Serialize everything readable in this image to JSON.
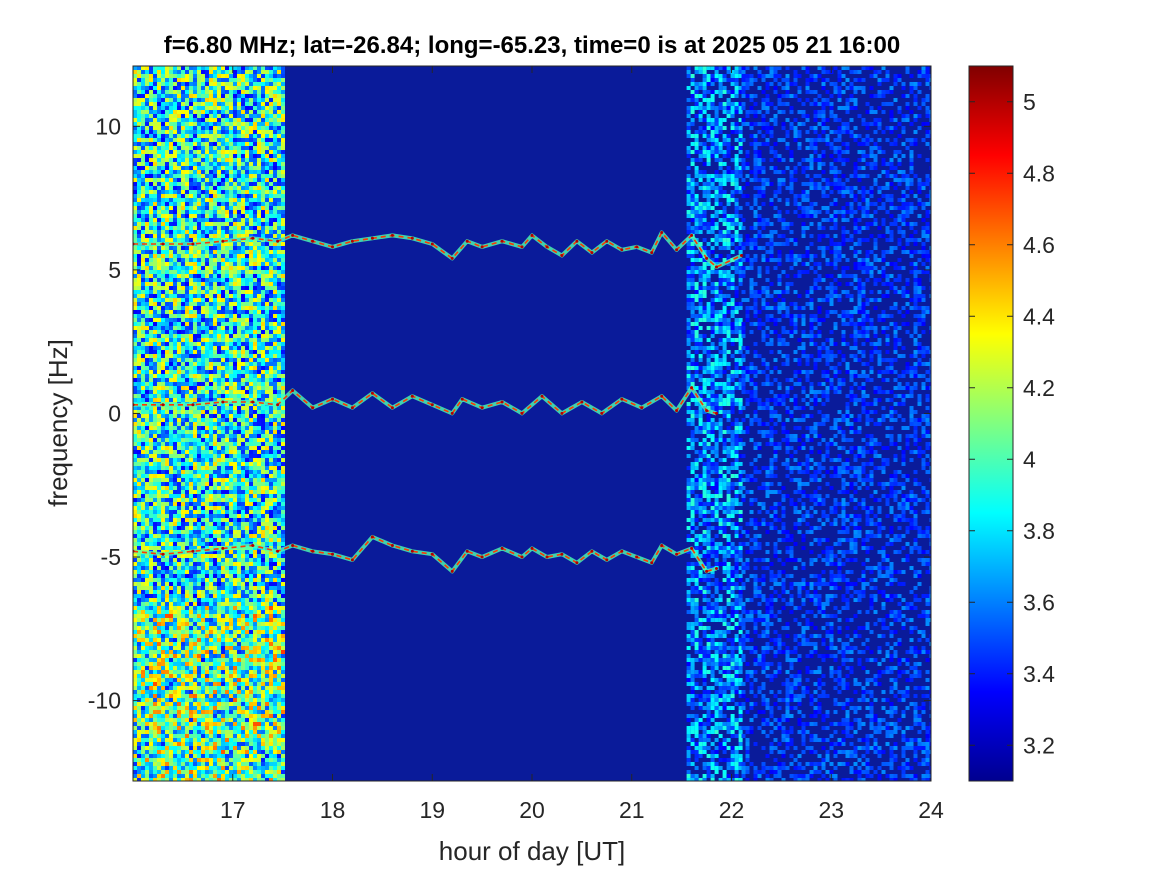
{
  "chart_data": {
    "type": "heatmap",
    "title": "f=6.80 MHz;  lat=-26.84; long=-65.23, time=0 is at 2025 05 21 16:00",
    "xlabel": "hour of day [UT]",
    "ylabel": "frequency [Hz]",
    "xlim": [
      16.0,
      24.0
    ],
    "ylim": [
      -12.8,
      12.1
    ],
    "x_ticks": [
      "17",
      "18",
      "19",
      "20",
      "21",
      "22",
      "23",
      "24"
    ],
    "y_ticks": [
      "10",
      "5",
      "0",
      "-5",
      "-10"
    ],
    "colorbar": {
      "range": [
        3.1,
        5.1
      ],
      "ticks": [
        "5",
        "4.8",
        "4.6",
        "4.4",
        "4.2",
        "4",
        "3.8",
        "3.6",
        "3.4",
        "3.2"
      ],
      "colormap": "jet"
    },
    "background_level": 3.15,
    "noise_regions": [
      {
        "x": [
          16.0,
          17.5
        ],
        "level": "high"
      },
      {
        "x": [
          21.55,
          22.1
        ],
        "level": "medium"
      },
      {
        "x": [
          22.1,
          24.0
        ],
        "level": "low"
      }
    ],
    "traces": [
      {
        "x": [
          16.0,
          16.3,
          16.6,
          16.9,
          17.2,
          17.45,
          17.6,
          17.8,
          18.0,
          18.2,
          18.4,
          18.6,
          18.8,
          19.0,
          19.2,
          19.35,
          19.5,
          19.7,
          19.9,
          20.0,
          20.15,
          20.3,
          20.45,
          20.6,
          20.75,
          20.9,
          21.05,
          21.2,
          21.3,
          21.45,
          21.6,
          21.75,
          21.85,
          22.1
        ],
        "y": [
          5.9,
          5.9,
          5.9,
          6.0,
          6.1,
          6.0,
          6.2,
          6.0,
          5.8,
          6.0,
          6.1,
          6.2,
          6.1,
          5.9,
          5.4,
          6.0,
          5.8,
          6.0,
          5.8,
          6.2,
          5.8,
          5.5,
          6.0,
          5.6,
          6.0,
          5.7,
          5.8,
          5.6,
          6.3,
          5.7,
          6.2,
          5.4,
          5.1,
          5.5
        ]
      },
      {
        "x": [
          16.0,
          16.3,
          16.6,
          16.9,
          17.2,
          17.45,
          17.6,
          17.8,
          18.0,
          18.2,
          18.4,
          18.6,
          18.8,
          19.0,
          19.2,
          19.3,
          19.5,
          19.7,
          19.9,
          20.1,
          20.3,
          20.5,
          20.7,
          20.9,
          21.1,
          21.3,
          21.45,
          21.6,
          21.75,
          21.85
        ],
        "y": [
          0.3,
          0.3,
          0.3,
          0.4,
          0.4,
          0.3,
          0.8,
          0.2,
          0.5,
          0.2,
          0.7,
          0.2,
          0.6,
          0.3,
          0.0,
          0.5,
          0.2,
          0.4,
          0.0,
          0.6,
          0.0,
          0.4,
          0.0,
          0.5,
          0.2,
          0.6,
          0.1,
          0.9,
          0.1,
          0.0
        ]
      },
      {
        "x": [
          16.0,
          16.3,
          16.6,
          16.9,
          17.2,
          17.45,
          17.6,
          17.8,
          18.0,
          18.2,
          18.4,
          18.6,
          18.8,
          19.0,
          19.2,
          19.35,
          19.5,
          19.7,
          19.9,
          20.0,
          20.15,
          20.3,
          20.45,
          20.6,
          20.75,
          20.9,
          21.05,
          21.2,
          21.3,
          21.45,
          21.6,
          21.75,
          21.85
        ],
        "y": [
          -4.8,
          -4.9,
          -4.8,
          -4.7,
          -4.6,
          -4.8,
          -4.6,
          -4.8,
          -4.9,
          -5.1,
          -4.3,
          -4.6,
          -4.8,
          -4.9,
          -5.5,
          -4.8,
          -5.0,
          -4.7,
          -5.0,
          -4.7,
          -5.0,
          -4.9,
          -5.2,
          -4.8,
          -5.1,
          -4.8,
          -5.0,
          -5.2,
          -4.6,
          -4.9,
          -4.7,
          -5.5,
          -5.4
        ]
      }
    ]
  }
}
